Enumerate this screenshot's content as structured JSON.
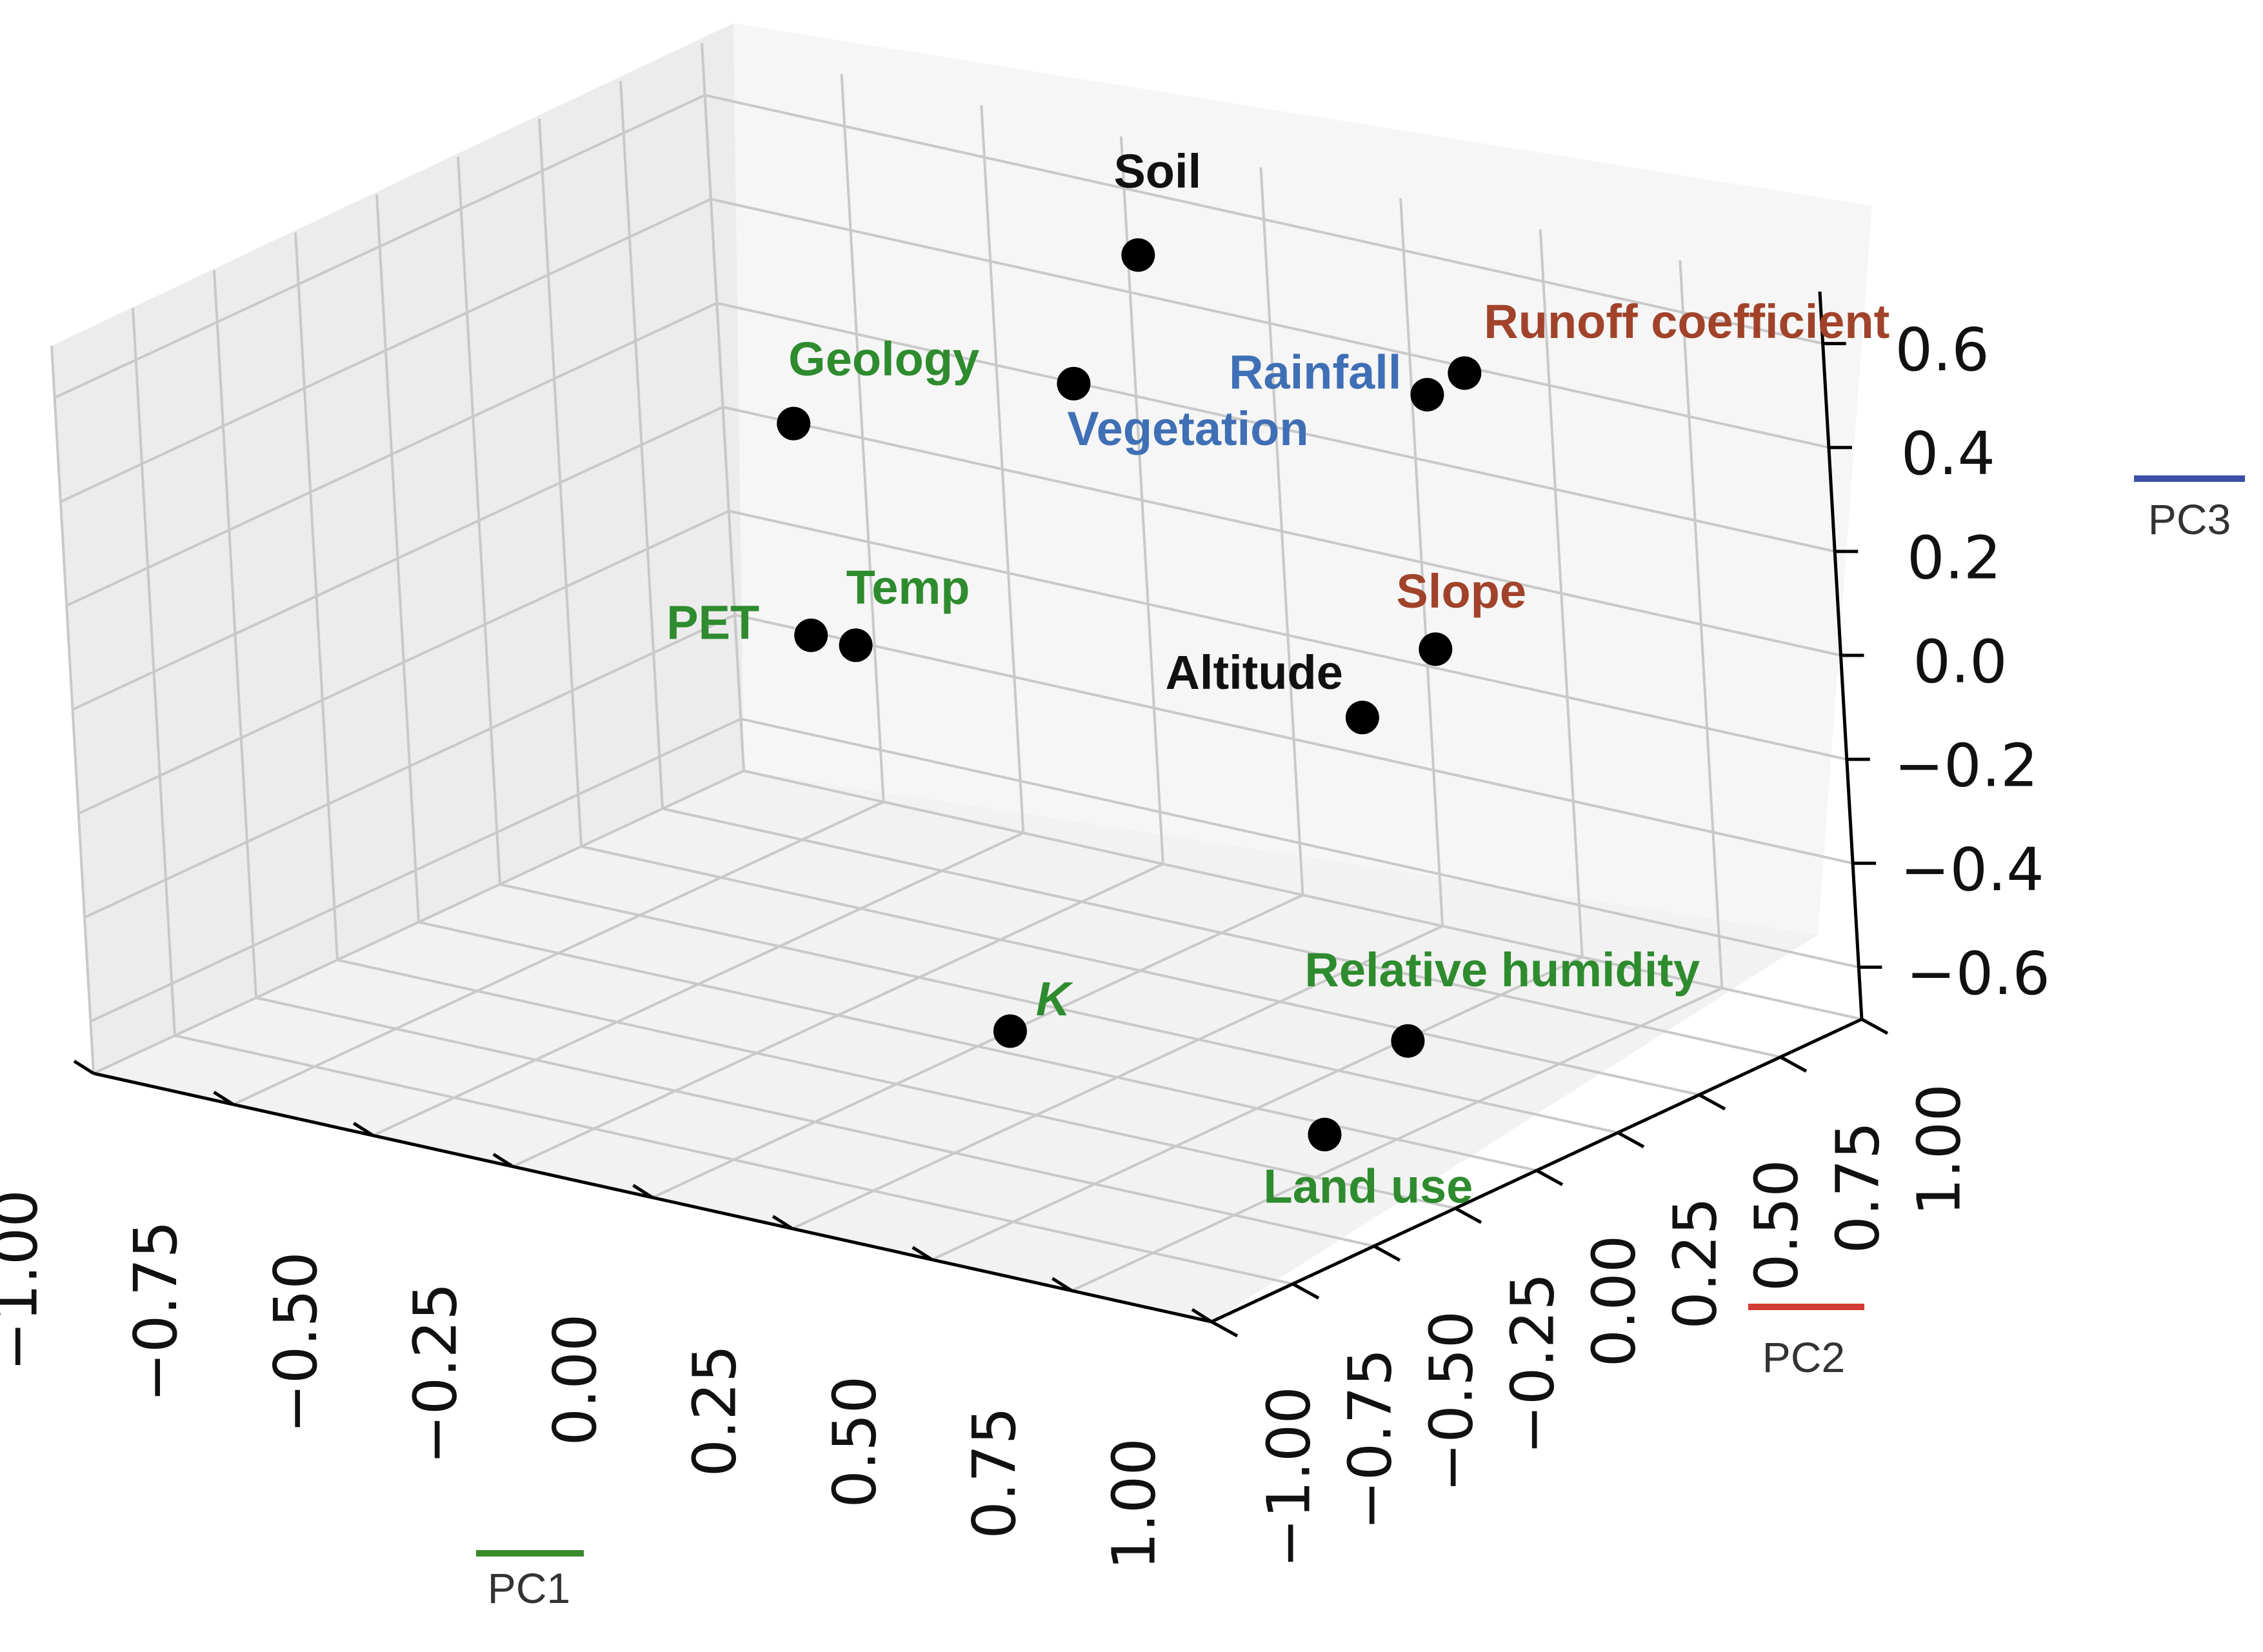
{
  "chart_data": {
    "type": "scatter",
    "projection": "3d",
    "grid": true,
    "axes": {
      "x": {
        "label": "PC1",
        "color": "#3a8a2a",
        "range": [
          -1.0,
          1.0
        ],
        "ticks": [
          "−1.00",
          "−0.75",
          "−0.50",
          "−0.25",
          "0.00",
          "0.25",
          "0.50",
          "0.75",
          "1.00"
        ]
      },
      "y": {
        "label": "PC2",
        "color": "#d23c32",
        "range": [
          -1.0,
          1.0
        ],
        "ticks": [
          "−1.00",
          "−0.75",
          "−0.50",
          "−0.25",
          "0.00",
          "0.25",
          "0.50",
          "0.75",
          "1.00"
        ]
      },
      "z": {
        "label": "PC3",
        "color": "#3a4fa5",
        "range": [
          -0.6,
          0.6
        ],
        "ticks": [
          "−0.6",
          "−0.4",
          "−0.2",
          "0.0",
          "0.2",
          "0.4",
          "0.6"
        ]
      }
    },
    "point_color": "#000000",
    "points": [
      {
        "label": "Soil",
        "label_color": "#111111",
        "x": -0.05,
        "y": 0.7,
        "z": 0.52
      },
      {
        "label": "Geology",
        "label_color": "#2e8b2e",
        "x": -0.45,
        "y": 0.3,
        "z": 0.26
      },
      {
        "label": "Vegetation",
        "label_color": "#3f6fb5",
        "x": -0.15,
        "y": 0.65,
        "z": 0.3
      },
      {
        "label": "Rainfall",
        "label_color": "#3f6fb5",
        "x": 0.55,
        "y": 0.55,
        "z": 0.45
      },
      {
        "label": "Runoff coefficient",
        "label_color": "#a0432a",
        "x": 0.62,
        "y": 0.55,
        "z": 0.5
      },
      {
        "label": "Slope",
        "label_color": "#a0432a",
        "x": 0.72,
        "y": 0.25,
        "z": 0.14
      },
      {
        "label": "Altitude",
        "label_color": "#111111",
        "x": 0.55,
        "y": 0.3,
        "z": -0.02
      },
      {
        "label": "Temp",
        "label_color": "#2e8b2e",
        "x": -0.3,
        "y": 0.2,
        "z": -0.05
      },
      {
        "label": "PET",
        "label_color": "#2e8b2e",
        "x": -0.38,
        "y": 0.2,
        "z": -0.05
      },
      {
        "label": "K",
        "label_color": "#2e8b2e",
        "x": 0.0,
        "y": 0.1,
        "z": -0.6
      },
      {
        "label": "Relative humidity",
        "label_color": "#2e8b2e",
        "x": 0.75,
        "y": 0.05,
        "z": -0.45
      },
      {
        "label": "Land use",
        "label_color": "#2e8b2e",
        "x": 0.65,
        "y": -0.05,
        "z": -0.6
      }
    ]
  }
}
